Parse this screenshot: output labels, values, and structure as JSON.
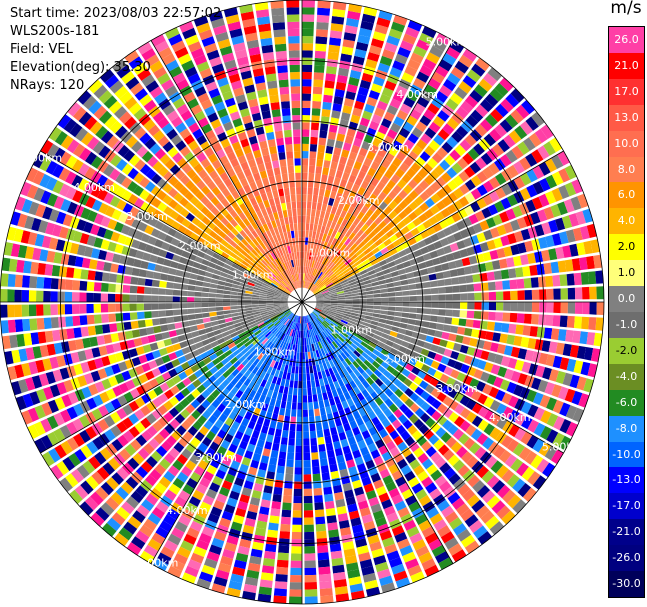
{
  "header": {
    "start_time": "Start time: 2023/08/03 22:57:02",
    "instrument": "WLS200s-181",
    "field": "Field: VEL",
    "elevation": "Elevation(deg): 35.30",
    "nrays": "NRays: 120"
  },
  "colorbar": {
    "unit": "m/s",
    "levels": [
      "26.0",
      "21.0",
      "17.0",
      "13.0",
      "10.0",
      "8.0",
      "6.0",
      "4.0",
      "2.0",
      "1.0",
      "0.0",
      "-1.0",
      "-2.0",
      "-4.0",
      "-6.0",
      "-8.0",
      "-10.0",
      "-13.0",
      "-17.0",
      "-21.0",
      "-26.0",
      "-30.0"
    ],
    "colors": [
      "#ff3fa6",
      "#ff0000",
      "#ff3030",
      "#ff5a46",
      "#ff6e50",
      "#ff7e50",
      "#ff9400",
      "#ffb400",
      "#ffff00",
      "#ffff7a",
      "#808080",
      "#6e6e6e",
      "#9acd32",
      "#6b8e23",
      "#228b22",
      "#1e90ff",
      "#0064ff",
      "#0000ff",
      "#0000cd",
      "#00008b",
      "#000080",
      "#00005a"
    ]
  },
  "chart_data": {
    "type": "ppi",
    "field": "VEL",
    "units": "m/s",
    "nrays": 120,
    "range_rings_km": [
      1.0,
      2.0,
      3.0,
      4.0,
      5.0
    ],
    "ring_labels": [
      "1.00km",
      "2.00km",
      "3.00km",
      "4.00km",
      "5.00km"
    ],
    "max_range_km": 5.0,
    "spokes_deg": [
      0,
      30,
      60,
      90,
      120,
      150,
      180,
      210,
      240,
      270,
      300,
      330
    ],
    "velocity_structure": {
      "north_sector": "positive 6 to 13 m/s (orange-red)",
      "east_west_edges": "near 0 m/s (grey)",
      "south_sector": "negative -4 to -10 m/s (green-blue)",
      "outer_ranges": "noise (random velocities)"
    }
  }
}
